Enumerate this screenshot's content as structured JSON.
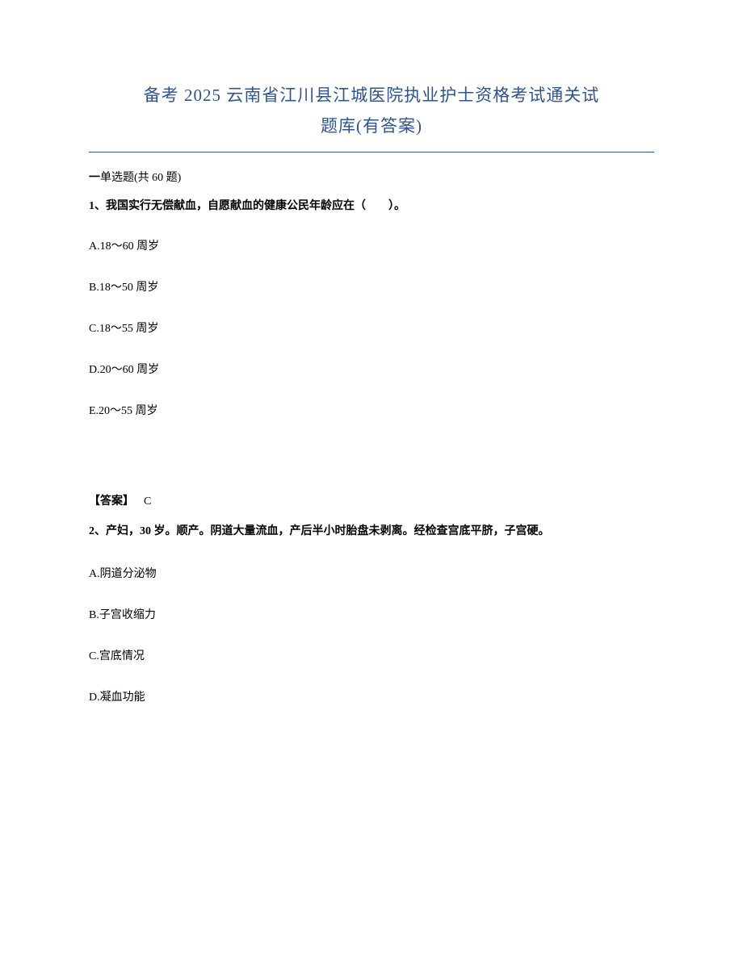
{
  "title": {
    "line1": "备考 2025 云南省江川县江城医院执业护士资格考试通关试",
    "line2": "题库(有答案)",
    "color": "#2e5496",
    "fontsize": 21
  },
  "section": {
    "prefix": "一",
    "label": "单选题",
    "count_text": "(共 60 题)"
  },
  "questions": [
    {
      "number": "1、",
      "stem": "我国实行无偿献血，自愿献血的健康公民年龄应在（　　）。",
      "options": [
        "A.18～60 周岁",
        "B.18～50 周岁",
        "C.18～55 周岁",
        "D.20～60 周岁",
        "E.20～55 周岁"
      ],
      "answer_label": "【答案】",
      "answer": "C"
    },
    {
      "number": "2、",
      "stem": "产妇，30 岁。顺产。阴道大量流血，产后半小时胎盘未剥离。经检查宫底平脐，子宫硬。",
      "options": [
        "A.阴道分泌物",
        "B.子宫收缩力",
        "C.宫底情况",
        "D.凝血功能"
      ]
    }
  ],
  "style": {
    "body_bg": "#ffffff",
    "text_color": "#000000",
    "body_fontsize": 14
  }
}
